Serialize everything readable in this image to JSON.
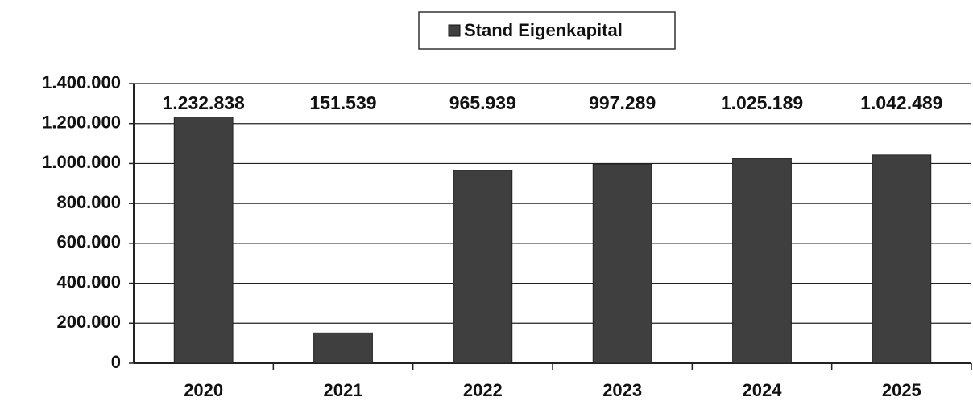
{
  "chart_data": {
    "type": "bar",
    "categories": [
      "2020",
      "2021",
      "2022",
      "2023",
      "2024",
      "2025"
    ],
    "series": [
      {
        "name": "Stand Eigenkapital",
        "color": "#3f3f3f",
        "values": [
          1232838,
          151539,
          965939,
          997289,
          1025189,
          1042489
        ],
        "value_labels": [
          "1.232.838",
          "151.539",
          "965.939",
          "997.289",
          "1.025.189",
          "1.042.489"
        ]
      }
    ],
    "ylim": [
      0,
      1400000
    ],
    "yticks": [
      0,
      {
        "value": 200000,
        "label": "200.000"
      },
      {
        "value": 400000,
        "label": "400.000"
      },
      {
        "value": 600000,
        "label": "600.000"
      },
      {
        "value": 800000,
        "label": "800.000"
      },
      {
        "value": 1000000,
        "label": "1.000.000"
      },
      {
        "value": 1200000,
        "label": "1.200.000"
      },
      {
        "value": 1400000,
        "label": "1.400.000"
      }
    ],
    "grid": true,
    "legend": "top"
  }
}
